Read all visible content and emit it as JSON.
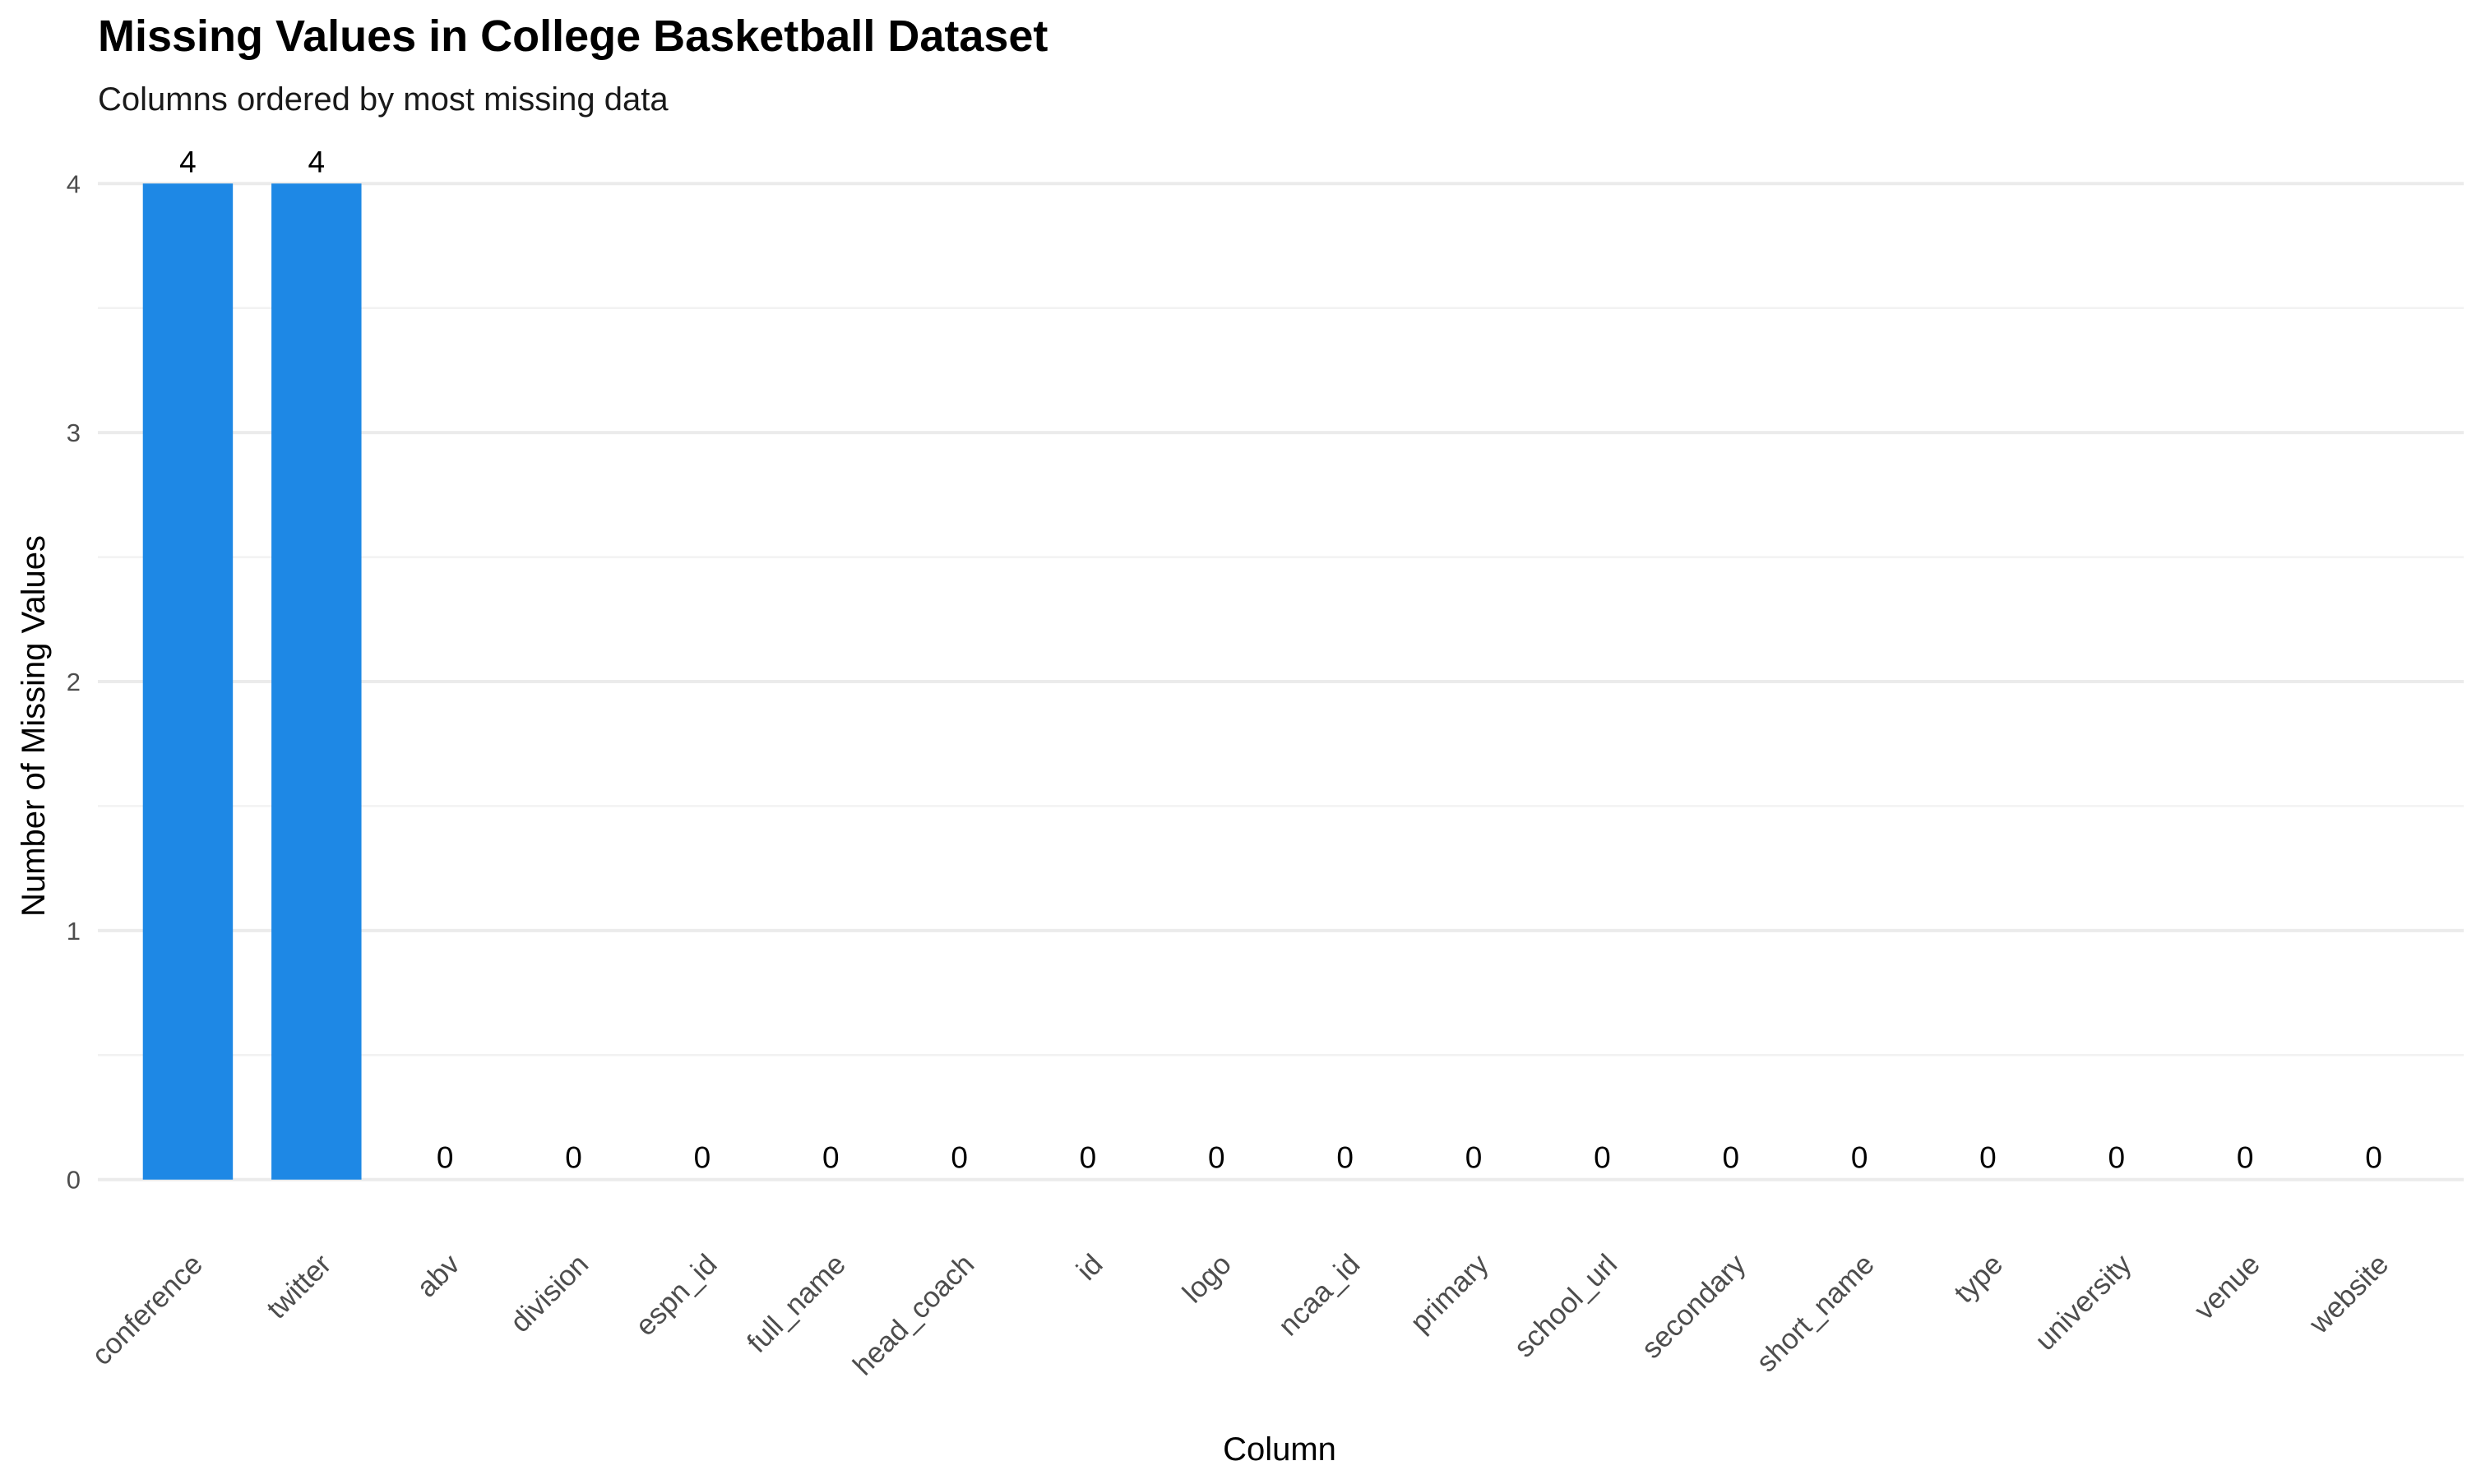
{
  "chart_data": {
    "type": "bar",
    "title": "Missing Values in College Basketball Dataset",
    "subtitle": "Columns ordered by most missing data",
    "xlabel": "Column",
    "ylabel": "Number of Missing Values",
    "categories": [
      "conference",
      "twitter",
      "abv",
      "division",
      "espn_id",
      "full_name",
      "head_coach",
      "id",
      "logo",
      "ncaa_id",
      "primary",
      "school_url",
      "secondary",
      "short_name",
      "type",
      "university",
      "venue",
      "website"
    ],
    "values": [
      4,
      4,
      0,
      0,
      0,
      0,
      0,
      0,
      0,
      0,
      0,
      0,
      0,
      0,
      0,
      0,
      0,
      0
    ],
    "ylim": [
      0,
      4
    ],
    "yticks": [
      0,
      1,
      2,
      3,
      4
    ],
    "grid": true,
    "legend": "none",
    "bar_color": "#1E88E5"
  }
}
